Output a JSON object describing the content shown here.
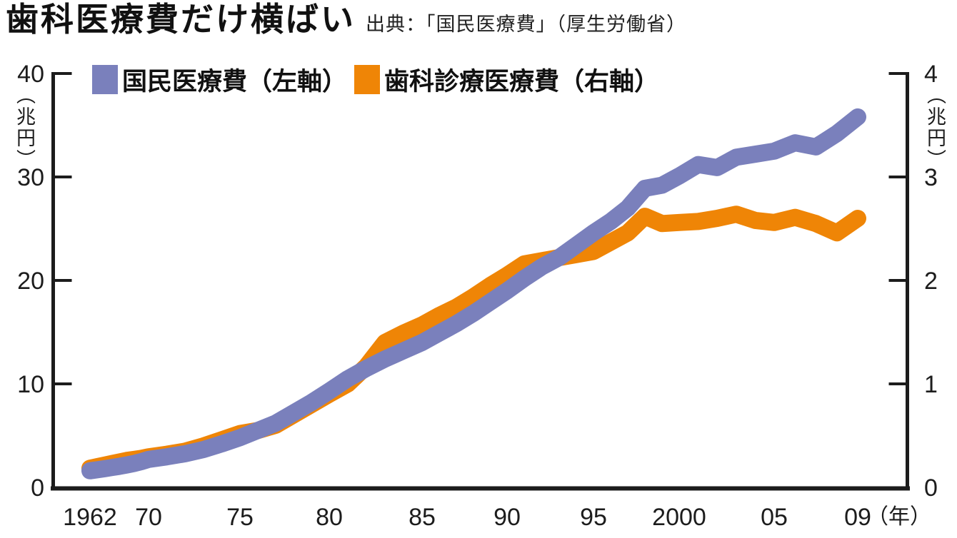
{
  "header": {
    "title": "歯科医療費だけ横ばい",
    "source": "出典：「国民医療費」（厚生労働省）"
  },
  "chart_data": {
    "type": "line",
    "title": "歯科医療費だけ横ばい",
    "legend_position": "top",
    "grid": false,
    "left_axis": {
      "label": "（兆円）",
      "range": [
        0,
        40
      ],
      "ticks": [
        0,
        10,
        20,
        30,
        40
      ]
    },
    "right_axis": {
      "label": "（兆円）",
      "range": [
        0,
        4
      ],
      "ticks": [
        0,
        1,
        2,
        3,
        4
      ]
    },
    "x_axis": {
      "unit": "（年）",
      "tick_labels": [
        "1962",
        "70",
        "75",
        "80",
        "85",
        "90",
        "95",
        "2000",
        "05",
        "09"
      ],
      "tick_years": [
        1962,
        1970,
        1975,
        1980,
        1985,
        1990,
        1995,
        2000,
        2005,
        2009
      ]
    },
    "x_years": [
      1962,
      1963,
      1964,
      1965,
      1966,
      1967,
      1968,
      1969,
      1970,
      1971,
      1972,
      1973,
      1974,
      1975,
      1976,
      1977,
      1978,
      1979,
      1980,
      1981,
      1982,
      1983,
      1984,
      1985,
      1986,
      1987,
      1988,
      1989,
      1990,
      1991,
      1992,
      1993,
      1994,
      1995,
      1996,
      1997,
      1998,
      1999,
      2000,
      2001,
      2002,
      2003,
      2004,
      2005,
      2006,
      2007,
      2008,
      2009
    ],
    "series": [
      {
        "name": "歯科診療医療費（右軸）",
        "axis": "right",
        "color": "#ef8506",
        "values": [
          0.185,
          0.2,
          0.215,
          0.23,
          0.245,
          0.26,
          0.27,
          0.28,
          0.295,
          0.32,
          0.35,
          0.4,
          0.46,
          0.52,
          0.55,
          0.6,
          0.7,
          0.8,
          0.9,
          1.0,
          1.17,
          1.4,
          1.49,
          1.57,
          1.66,
          1.74,
          1.84,
          1.95,
          2.05,
          2.16,
          2.19,
          2.22,
          2.25,
          2.28,
          2.37,
          2.46,
          2.62,
          2.55,
          2.56,
          2.57,
          2.6,
          2.64,
          2.58,
          2.56,
          2.61,
          2.55,
          2.46,
          2.6
        ]
      },
      {
        "name": "国民医療費（左軸）",
        "axis": "left",
        "color": "#7a80bc",
        "values": [
          1.6,
          1.7,
          1.8,
          1.92,
          2.03,
          2.16,
          2.3,
          2.48,
          2.7,
          2.95,
          3.25,
          3.65,
          4.2,
          4.8,
          5.5,
          6.2,
          7.2,
          8.2,
          9.3,
          10.5,
          11.5,
          12.4,
          13.2,
          14.0,
          14.9,
          15.8,
          16.8,
          17.9,
          19.0,
          20.2,
          21.3,
          22.2,
          23.4,
          24.6,
          25.7,
          27.0,
          28.9,
          29.2,
          30.1,
          31.2,
          30.9,
          31.9,
          32.2,
          32.5,
          33.3,
          32.9,
          34.2,
          35.8
        ]
      }
    ]
  }
}
